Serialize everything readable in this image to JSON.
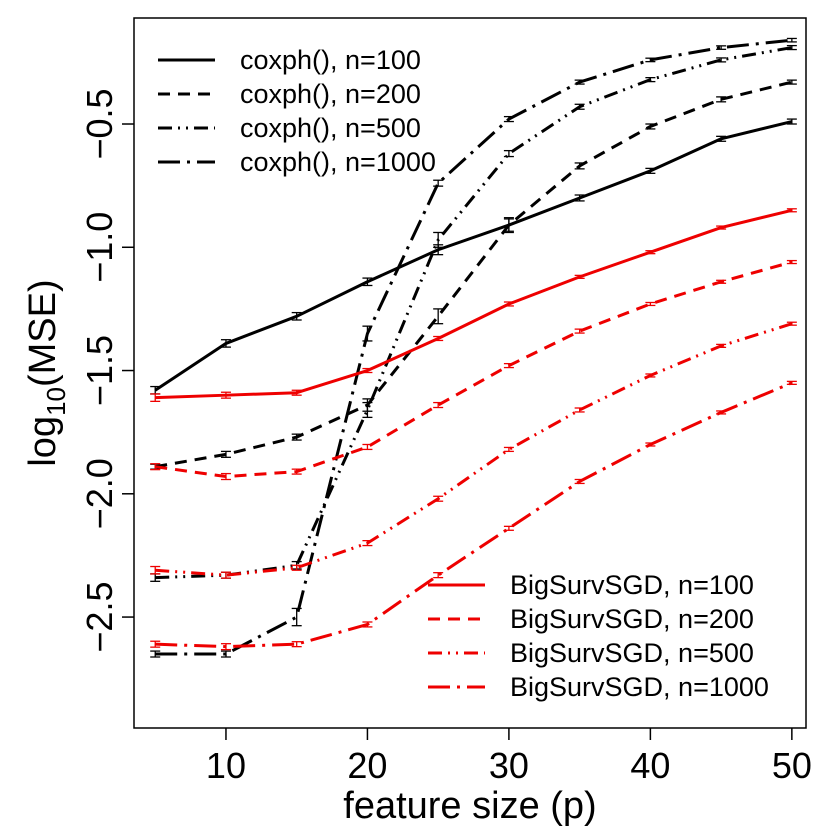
{
  "chart_data": {
    "type": "line",
    "xlabel": "feature size (p)",
    "ylabel": "log10(MSE)",
    "ylabel_parts": {
      "pre": "log",
      "sub": "10",
      "post": "(MSE)"
    },
    "xlim": [
      3.5,
      51
    ],
    "ylim": [
      -2.95,
      -0.07
    ],
    "xticks": [
      10,
      20,
      30,
      40,
      50
    ],
    "yticks": [
      -2.5,
      -2.0,
      -1.5,
      -1.0,
      -0.5
    ],
    "ytick_labels": [
      "−2.5",
      "−2.0",
      "−1.5",
      "−1.0",
      "−0.5"
    ],
    "grid": false,
    "legends": [
      {
        "placement": "top-left",
        "entries": [
          "coxph(), n=100",
          "coxph(), n=200",
          "coxph(), n=500",
          "coxph(), n=1000"
        ]
      },
      {
        "placement": "bottom-right",
        "entries": [
          "BigSurvSGD, n=100",
          "BigSurvSGD, n=200",
          "BigSurvSGD, n=500",
          "BigSurvSGD, n=1000"
        ]
      }
    ],
    "x": [
      5,
      10,
      15,
      20,
      25,
      30,
      35,
      40,
      45,
      50
    ],
    "series": [
      {
        "name": "coxph(), n=100",
        "color": "#000000",
        "dash": "solid",
        "values": [
          -1.58,
          -1.39,
          -1.28,
          -1.14,
          -1.01,
          -0.91,
          -0.8,
          -0.69,
          -0.56,
          -0.49
        ],
        "err": [
          0.015,
          0.015,
          0.015,
          0.015,
          0.02,
          0.025,
          0.012,
          0.01,
          0.01,
          0.01
        ]
      },
      {
        "name": "coxph(), n=200",
        "color": "#000000",
        "dash": "dash",
        "values": [
          -1.89,
          -1.84,
          -1.77,
          -1.64,
          -1.28,
          -0.91,
          -0.67,
          -0.51,
          -0.4,
          -0.33
        ],
        "err": [
          0.01,
          0.012,
          0.012,
          0.025,
          0.03,
          0.03,
          0.012,
          0.01,
          0.01,
          0.008
        ]
      },
      {
        "name": "coxph(), n=500",
        "color": "#000000",
        "dash": "dashdotdot",
        "values": [
          -2.34,
          -2.33,
          -2.29,
          -1.66,
          -0.97,
          -0.62,
          -0.43,
          -0.32,
          -0.24,
          -0.19
        ],
        "err": [
          0.015,
          0.012,
          0.015,
          0.03,
          0.03,
          0.012,
          0.01,
          0.008,
          0.008,
          0.008
        ]
      },
      {
        "name": "coxph(), n=1000",
        "color": "#000000",
        "dash": "longdashdot",
        "values": [
          -2.65,
          -2.65,
          -2.5,
          -1.35,
          -0.74,
          -0.48,
          -0.33,
          -0.24,
          -0.19,
          -0.16
        ],
        "err": [
          0.012,
          0.012,
          0.035,
          0.03,
          0.012,
          0.01,
          0.008,
          0.007,
          0.007,
          0.007
        ]
      },
      {
        "name": "BigSurvSGD, n=100",
        "color": "#ee0000",
        "dash": "solid",
        "values": [
          -1.61,
          -1.6,
          -1.59,
          -1.5,
          -1.37,
          -1.23,
          -1.12,
          -1.02,
          -0.92,
          -0.85
        ],
        "err": [
          0.015,
          0.012,
          0.01,
          0.008,
          0.008,
          0.008,
          0.006,
          0.006,
          0.006,
          0.006
        ]
      },
      {
        "name": "BigSurvSGD, n=200",
        "color": "#ee0000",
        "dash": "dash",
        "values": [
          -1.89,
          -1.93,
          -1.91,
          -1.81,
          -1.64,
          -1.48,
          -1.34,
          -1.23,
          -1.14,
          -1.06
        ],
        "err": [
          0.012,
          0.012,
          0.01,
          0.01,
          0.01,
          0.008,
          0.008,
          0.006,
          0.006,
          0.006
        ]
      },
      {
        "name": "BigSurvSGD, n=500",
        "color": "#ee0000",
        "dash": "dashdotdot",
        "values": [
          -2.31,
          -2.33,
          -2.3,
          -2.2,
          -2.02,
          -1.82,
          -1.66,
          -1.52,
          -1.4,
          -1.31
        ],
        "err": [
          0.015,
          0.012,
          0.01,
          0.01,
          0.01,
          0.008,
          0.008,
          0.006,
          0.006,
          0.006
        ]
      },
      {
        "name": "BigSurvSGD, n=1000",
        "color": "#ee0000",
        "dash": "longdashdot",
        "values": [
          -2.61,
          -2.62,
          -2.61,
          -2.53,
          -2.33,
          -2.14,
          -1.95,
          -1.8,
          -1.67,
          -1.55
        ],
        "err": [
          0.012,
          0.012,
          0.01,
          0.01,
          0.01,
          0.008,
          0.008,
          0.006,
          0.006,
          0.006
        ]
      }
    ]
  }
}
